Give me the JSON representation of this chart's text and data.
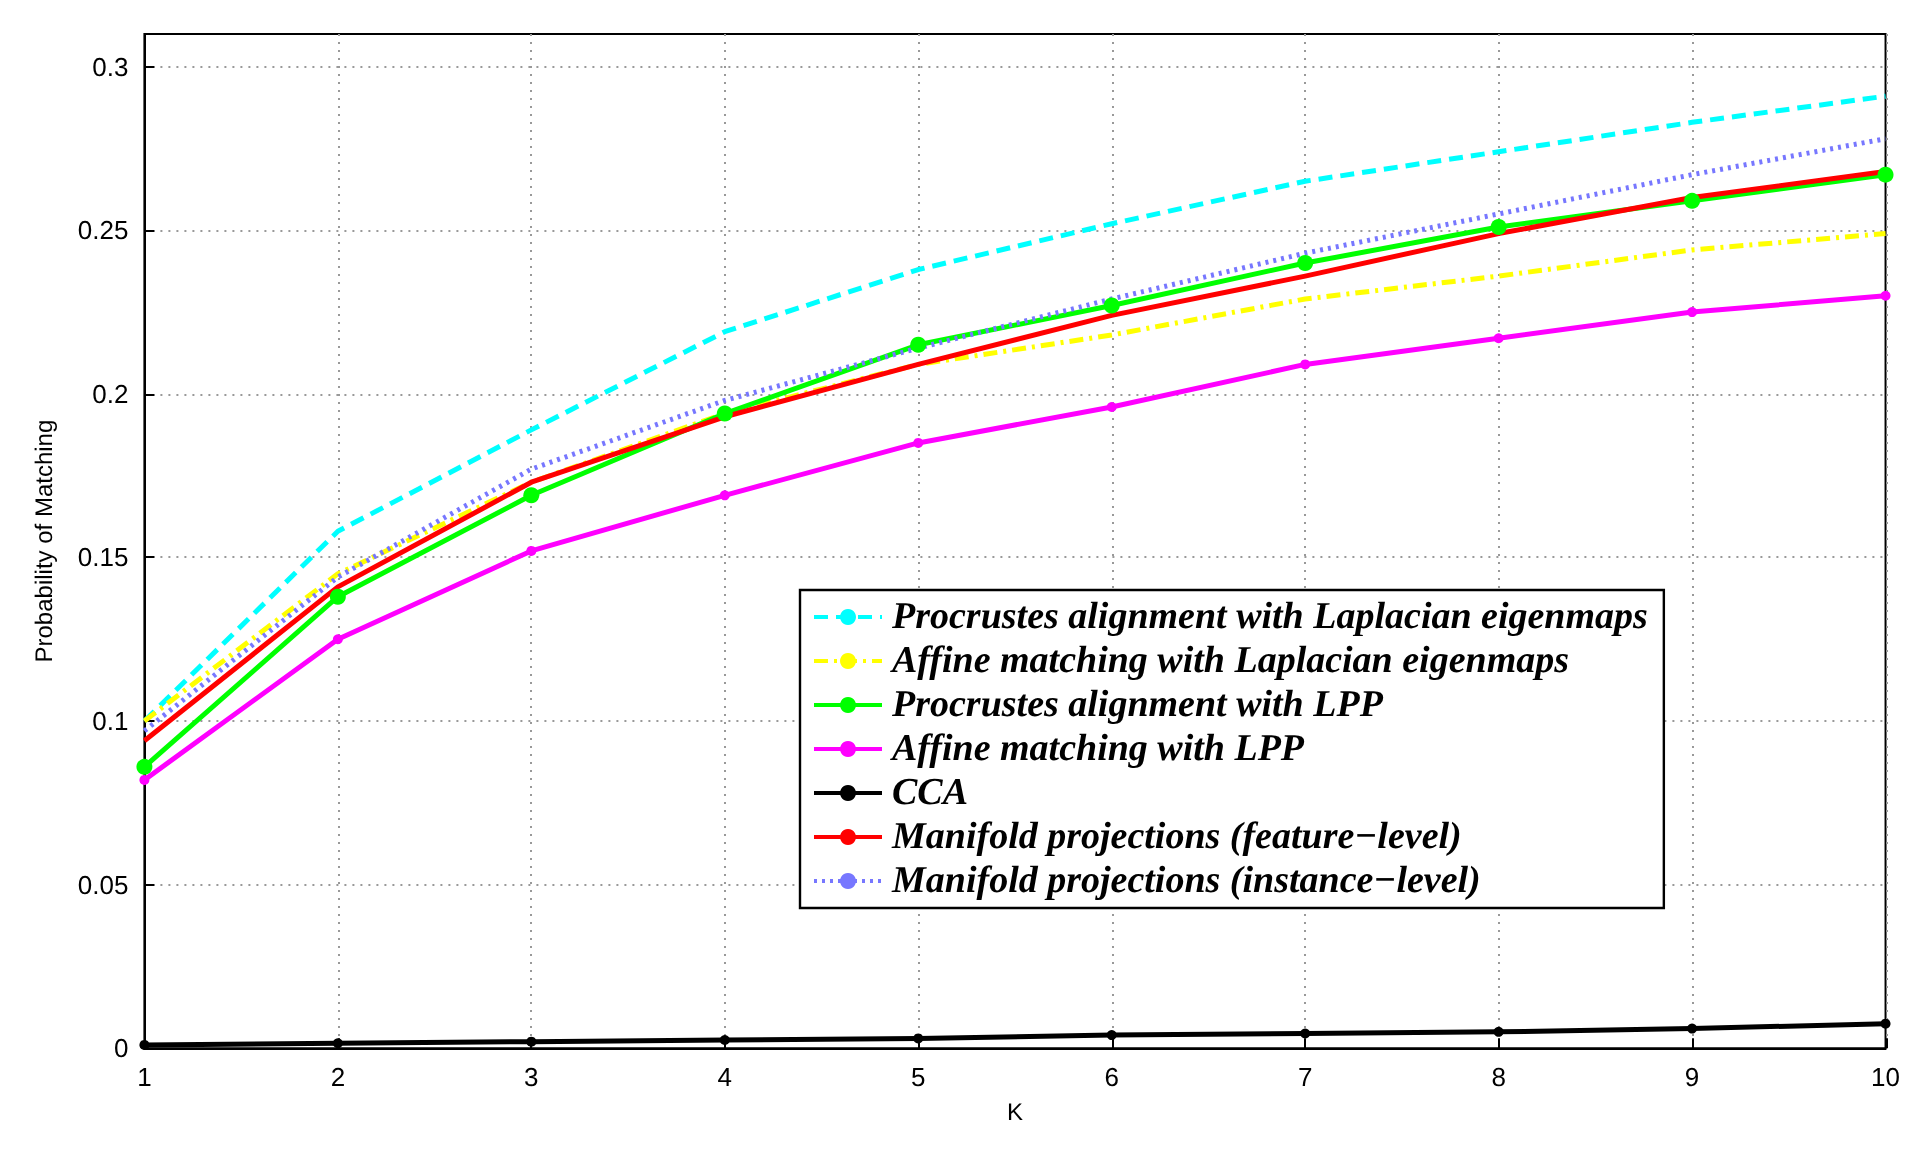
{
  "chart_data": {
    "type": "line",
    "xlabel": "K",
    "ylabel": "Probability of Matching",
    "x": [
      1,
      2,
      3,
      4,
      5,
      6,
      7,
      8,
      9,
      10
    ],
    "xlim": [
      1,
      10
    ],
    "xticks": [
      1,
      2,
      3,
      4,
      5,
      6,
      7,
      8,
      9,
      10
    ],
    "ylim": [
      0,
      0.31
    ],
    "yticks": [
      0,
      0.05,
      0.1,
      0.15,
      0.2,
      0.25,
      0.3
    ],
    "grid": true,
    "legend": "right",
    "series": [
      {
        "name": "Procrustes alignment with Laplacian eigenmaps",
        "color": "#00ffff",
        "line_style": "dashed",
        "marker": "none",
        "values": [
          0.1,
          0.158,
          0.189,
          0.219,
          0.238,
          0.252,
          0.265,
          0.274,
          0.283,
          0.291
        ]
      },
      {
        "name": "Affine matching with Laplacian eigenmaps",
        "color": "#ffff00",
        "line_style": "dashdot",
        "marker": "none",
        "values": [
          0.1,
          0.145,
          0.173,
          0.194,
          0.209,
          0.218,
          0.229,
          0.236,
          0.244,
          0.249
        ]
      },
      {
        "name": "Procrustes alignment with LPP",
        "color": "#00ff00",
        "line_style": "solid",
        "marker": "circle",
        "values": [
          0.086,
          0.138,
          0.169,
          0.194,
          0.215,
          0.227,
          0.24,
          0.251,
          0.259,
          0.267
        ]
      },
      {
        "name": "Affine matching with LPP",
        "color": "#ff00ff",
        "line_style": "solid",
        "marker": "point",
        "values": [
          0.082,
          0.125,
          0.152,
          0.169,
          0.185,
          0.196,
          0.209,
          0.217,
          0.225,
          0.23
        ]
      },
      {
        "name": "CCA",
        "color": "#000000",
        "line_style": "solid",
        "marker": "point",
        "values": [
          0.001,
          0.0015,
          0.002,
          0.0025,
          0.003,
          0.004,
          0.0045,
          0.005,
          0.006,
          0.0075
        ]
      },
      {
        "name": "Manifold projections (feature−level)",
        "color": "#ff0000",
        "line_style": "solid",
        "marker": "none",
        "values": [
          0.094,
          0.141,
          0.173,
          0.193,
          0.209,
          0.224,
          0.236,
          0.249,
          0.26,
          0.268
        ]
      },
      {
        "name": "Manifold projections (instance−level)",
        "color": "#7777ff",
        "line_style": "dotted",
        "marker": "none",
        "values": [
          0.097,
          0.144,
          0.177,
          0.198,
          0.214,
          0.229,
          0.243,
          0.255,
          0.267,
          0.278
        ]
      }
    ]
  }
}
